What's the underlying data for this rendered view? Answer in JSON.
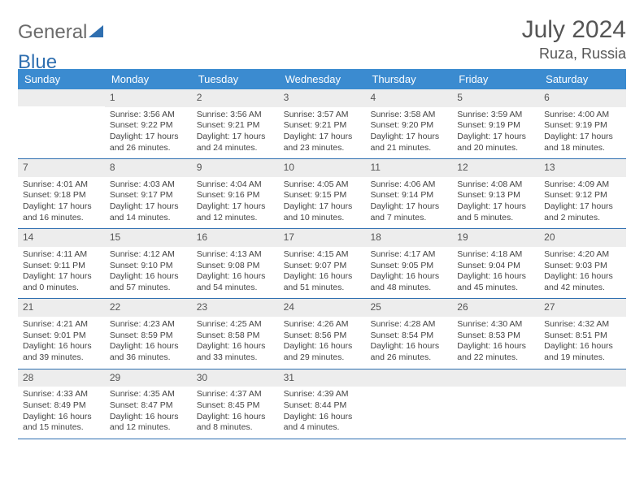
{
  "logo": {
    "text_a": "General",
    "text_b": "Blue"
  },
  "title": {
    "month": "July 2024",
    "location": "Ruza, Russia"
  },
  "colors": {
    "header_bg": "#3b8bd0",
    "header_fg": "#ffffff",
    "daynum_bg": "#ededed",
    "week_border": "#2f6fb0",
    "text": "#444444"
  },
  "weekdays": [
    "Sunday",
    "Monday",
    "Tuesday",
    "Wednesday",
    "Thursday",
    "Friday",
    "Saturday"
  ],
  "weeks": [
    [
      {
        "empty": true
      },
      {
        "n": "1",
        "sr": "Sunrise: 3:56 AM",
        "ss": "Sunset: 9:22 PM",
        "d1": "Daylight: 17 hours",
        "d2": "and 26 minutes."
      },
      {
        "n": "2",
        "sr": "Sunrise: 3:56 AM",
        "ss": "Sunset: 9:21 PM",
        "d1": "Daylight: 17 hours",
        "d2": "and 24 minutes."
      },
      {
        "n": "3",
        "sr": "Sunrise: 3:57 AM",
        "ss": "Sunset: 9:21 PM",
        "d1": "Daylight: 17 hours",
        "d2": "and 23 minutes."
      },
      {
        "n": "4",
        "sr": "Sunrise: 3:58 AM",
        "ss": "Sunset: 9:20 PM",
        "d1": "Daylight: 17 hours",
        "d2": "and 21 minutes."
      },
      {
        "n": "5",
        "sr": "Sunrise: 3:59 AM",
        "ss": "Sunset: 9:19 PM",
        "d1": "Daylight: 17 hours",
        "d2": "and 20 minutes."
      },
      {
        "n": "6",
        "sr": "Sunrise: 4:00 AM",
        "ss": "Sunset: 9:19 PM",
        "d1": "Daylight: 17 hours",
        "d2": "and 18 minutes."
      }
    ],
    [
      {
        "n": "7",
        "sr": "Sunrise: 4:01 AM",
        "ss": "Sunset: 9:18 PM",
        "d1": "Daylight: 17 hours",
        "d2": "and 16 minutes."
      },
      {
        "n": "8",
        "sr": "Sunrise: 4:03 AM",
        "ss": "Sunset: 9:17 PM",
        "d1": "Daylight: 17 hours",
        "d2": "and 14 minutes."
      },
      {
        "n": "9",
        "sr": "Sunrise: 4:04 AM",
        "ss": "Sunset: 9:16 PM",
        "d1": "Daylight: 17 hours",
        "d2": "and 12 minutes."
      },
      {
        "n": "10",
        "sr": "Sunrise: 4:05 AM",
        "ss": "Sunset: 9:15 PM",
        "d1": "Daylight: 17 hours",
        "d2": "and 10 minutes."
      },
      {
        "n": "11",
        "sr": "Sunrise: 4:06 AM",
        "ss": "Sunset: 9:14 PM",
        "d1": "Daylight: 17 hours",
        "d2": "and 7 minutes."
      },
      {
        "n": "12",
        "sr": "Sunrise: 4:08 AM",
        "ss": "Sunset: 9:13 PM",
        "d1": "Daylight: 17 hours",
        "d2": "and 5 minutes."
      },
      {
        "n": "13",
        "sr": "Sunrise: 4:09 AM",
        "ss": "Sunset: 9:12 PM",
        "d1": "Daylight: 17 hours",
        "d2": "and 2 minutes."
      }
    ],
    [
      {
        "n": "14",
        "sr": "Sunrise: 4:11 AM",
        "ss": "Sunset: 9:11 PM",
        "d1": "Daylight: 17 hours",
        "d2": "and 0 minutes."
      },
      {
        "n": "15",
        "sr": "Sunrise: 4:12 AM",
        "ss": "Sunset: 9:10 PM",
        "d1": "Daylight: 16 hours",
        "d2": "and 57 minutes."
      },
      {
        "n": "16",
        "sr": "Sunrise: 4:13 AM",
        "ss": "Sunset: 9:08 PM",
        "d1": "Daylight: 16 hours",
        "d2": "and 54 minutes."
      },
      {
        "n": "17",
        "sr": "Sunrise: 4:15 AM",
        "ss": "Sunset: 9:07 PM",
        "d1": "Daylight: 16 hours",
        "d2": "and 51 minutes."
      },
      {
        "n": "18",
        "sr": "Sunrise: 4:17 AM",
        "ss": "Sunset: 9:05 PM",
        "d1": "Daylight: 16 hours",
        "d2": "and 48 minutes."
      },
      {
        "n": "19",
        "sr": "Sunrise: 4:18 AM",
        "ss": "Sunset: 9:04 PM",
        "d1": "Daylight: 16 hours",
        "d2": "and 45 minutes."
      },
      {
        "n": "20",
        "sr": "Sunrise: 4:20 AM",
        "ss": "Sunset: 9:03 PM",
        "d1": "Daylight: 16 hours",
        "d2": "and 42 minutes."
      }
    ],
    [
      {
        "n": "21",
        "sr": "Sunrise: 4:21 AM",
        "ss": "Sunset: 9:01 PM",
        "d1": "Daylight: 16 hours",
        "d2": "and 39 minutes."
      },
      {
        "n": "22",
        "sr": "Sunrise: 4:23 AM",
        "ss": "Sunset: 8:59 PM",
        "d1": "Daylight: 16 hours",
        "d2": "and 36 minutes."
      },
      {
        "n": "23",
        "sr": "Sunrise: 4:25 AM",
        "ss": "Sunset: 8:58 PM",
        "d1": "Daylight: 16 hours",
        "d2": "and 33 minutes."
      },
      {
        "n": "24",
        "sr": "Sunrise: 4:26 AM",
        "ss": "Sunset: 8:56 PM",
        "d1": "Daylight: 16 hours",
        "d2": "and 29 minutes."
      },
      {
        "n": "25",
        "sr": "Sunrise: 4:28 AM",
        "ss": "Sunset: 8:54 PM",
        "d1": "Daylight: 16 hours",
        "d2": "and 26 minutes."
      },
      {
        "n": "26",
        "sr": "Sunrise: 4:30 AM",
        "ss": "Sunset: 8:53 PM",
        "d1": "Daylight: 16 hours",
        "d2": "and 22 minutes."
      },
      {
        "n": "27",
        "sr": "Sunrise: 4:32 AM",
        "ss": "Sunset: 8:51 PM",
        "d1": "Daylight: 16 hours",
        "d2": "and 19 minutes."
      }
    ],
    [
      {
        "n": "28",
        "sr": "Sunrise: 4:33 AM",
        "ss": "Sunset: 8:49 PM",
        "d1": "Daylight: 16 hours",
        "d2": "and 15 minutes."
      },
      {
        "n": "29",
        "sr": "Sunrise: 4:35 AM",
        "ss": "Sunset: 8:47 PM",
        "d1": "Daylight: 16 hours",
        "d2": "and 12 minutes."
      },
      {
        "n": "30",
        "sr": "Sunrise: 4:37 AM",
        "ss": "Sunset: 8:45 PM",
        "d1": "Daylight: 16 hours",
        "d2": "and 8 minutes."
      },
      {
        "n": "31",
        "sr": "Sunrise: 4:39 AM",
        "ss": "Sunset: 8:44 PM",
        "d1": "Daylight: 16 hours",
        "d2": "and 4 minutes."
      },
      {
        "empty": true
      },
      {
        "empty": true
      },
      {
        "empty": true
      }
    ]
  ]
}
